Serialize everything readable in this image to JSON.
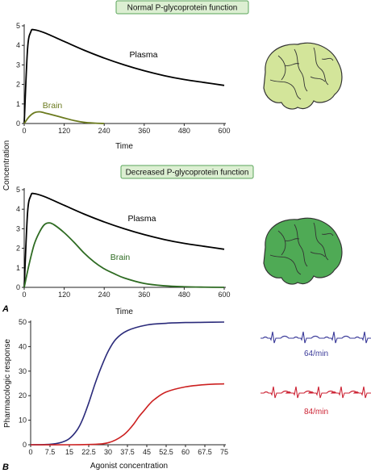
{
  "panel_letters": {
    "a": "A",
    "b": "B"
  },
  "colors": {
    "plasma": "#000000",
    "brain_normal": "#6b7a1e",
    "brain_decreased": "#2e6b22",
    "brain_icon_light": "#d3e59a",
    "brain_icon_dark": "#4faa55",
    "title_box_fill": "#dcefd2",
    "title_box_border": "#5aa55a",
    "curve_blue": "#2a2a7a",
    "curve_red": "#cc2020",
    "ecg_blue": "#3a3a99",
    "ecg_red": "#cc2233"
  },
  "icons": {
    "brain_top": "brain-icon",
    "brain_bottom": "brain-icon"
  },
  "shared_ylabel": "Concentration",
  "ecg": {
    "top_rate": "64/min",
    "bottom_rate": "84/min"
  },
  "chart_data": [
    {
      "type": "line",
      "title": "Normal P-glycoprotein function",
      "xlabel": "Time",
      "ylabel": "Concentration",
      "xlim": [
        0,
        600
      ],
      "ylim": [
        0,
        5
      ],
      "xticks": [
        "0",
        "120",
        "240",
        "360",
        "480",
        "600"
      ],
      "yticks": [
        "0",
        "1",
        "2",
        "3",
        "4",
        "5"
      ],
      "series": [
        {
          "name": "Plasma",
          "x": [
            0,
            10,
            20,
            30,
            60,
            120,
            180,
            240,
            300,
            360,
            420,
            480,
            540,
            600
          ],
          "y": [
            0,
            3.8,
            4.7,
            4.8,
            4.65,
            4.2,
            3.75,
            3.35,
            3.0,
            2.7,
            2.45,
            2.25,
            2.1,
            1.95
          ]
        },
        {
          "name": "Brain",
          "x": [
            0,
            15,
            30,
            45,
            60,
            90,
            120,
            150,
            180,
            210,
            240
          ],
          "y": [
            0,
            0.35,
            0.55,
            0.6,
            0.55,
            0.42,
            0.28,
            0.15,
            0.06,
            0.02,
            0.0
          ]
        }
      ]
    },
    {
      "type": "line",
      "title": "Decreased P-glycoprotein function",
      "xlabel": "Time",
      "ylabel": "Concentration",
      "xlim": [
        0,
        600
      ],
      "ylim": [
        0,
        5
      ],
      "xticks": [
        "0",
        "120",
        "240",
        "360",
        "480",
        "600"
      ],
      "yticks": [
        "0",
        "1",
        "2",
        "3",
        "4",
        "5"
      ],
      "series": [
        {
          "name": "Plasma",
          "x": [
            0,
            10,
            20,
            30,
            60,
            120,
            180,
            240,
            300,
            360,
            420,
            480,
            540,
            600
          ],
          "y": [
            0,
            3.8,
            4.7,
            4.8,
            4.65,
            4.2,
            3.75,
            3.35,
            3.0,
            2.7,
            2.45,
            2.25,
            2.1,
            1.95
          ]
        },
        {
          "name": "Brain",
          "x": [
            0,
            15,
            30,
            45,
            60,
            75,
            90,
            120,
            150,
            180,
            210,
            240,
            270,
            300,
            360,
            420,
            480,
            540,
            600
          ],
          "y": [
            0,
            1.2,
            2.2,
            2.8,
            3.2,
            3.3,
            3.2,
            2.8,
            2.3,
            1.75,
            1.3,
            0.95,
            0.7,
            0.48,
            0.2,
            0.08,
            0.03,
            0.01,
            0.0
          ]
        }
      ]
    },
    {
      "type": "line",
      "title": "",
      "xlabel": "Agonist concentration",
      "ylabel": "Pharmacologic response",
      "xlim": [
        0,
        75
      ],
      "ylim": [
        0,
        50
      ],
      "xticks": [
        "0",
        "7.5",
        "15",
        "22.5",
        "30",
        "37.5",
        "45",
        "52.5",
        "60",
        "67.5",
        "75"
      ],
      "yticks": [
        "0",
        "10",
        "20",
        "30",
        "40",
        "50"
      ],
      "series": [
        {
          "name": "",
          "x": [
            0,
            7.5,
            12,
            15,
            18,
            20,
            22.5,
            25,
            27.5,
            30,
            33,
            37.5,
            45,
            52.5,
            60,
            67.5,
            75
          ],
          "y": [
            0,
            0.2,
            1.0,
            2.5,
            6.0,
            10.0,
            17.0,
            25.0,
            32.0,
            38.0,
            43.0,
            46.5,
            48.8,
            49.5,
            49.8,
            49.9,
            50.0
          ]
        },
        {
          "name": "",
          "x": [
            0,
            15,
            22.5,
            27,
            30,
            33,
            36,
            38,
            40,
            42,
            44,
            46,
            48,
            52.5,
            60,
            67.5,
            75
          ],
          "y": [
            0,
            0,
            0.1,
            0.3,
            0.8,
            2.0,
            4.0,
            6.0,
            8.5,
            11.5,
            14.0,
            16.5,
            18.5,
            21.5,
            23.6,
            24.5,
            24.8
          ]
        }
      ]
    }
  ]
}
